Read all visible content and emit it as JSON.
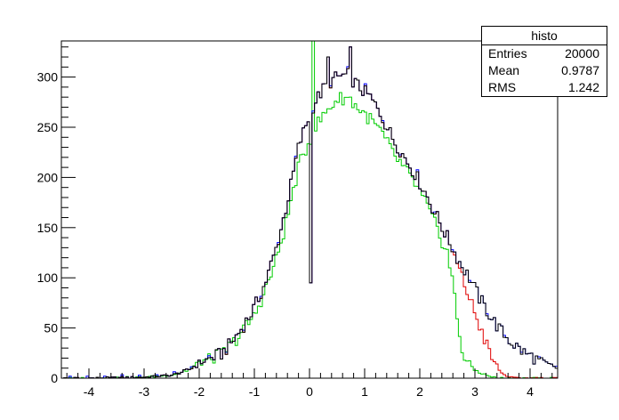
{
  "chart_data": {
    "type": "step",
    "title": "",
    "xlabel": "",
    "ylabel": "",
    "xlim": [
      -4.5,
      4.5
    ],
    "ylim": [
      0,
      336
    ],
    "xticks": [
      -4,
      -3,
      -2,
      -1,
      0,
      1,
      2,
      3,
      4
    ],
    "yticks": [
      0,
      50,
      100,
      150,
      200,
      250,
      300
    ],
    "bins": 200,
    "colors": {
      "black": "#000000",
      "red": "#e00000",
      "green": "#00cc00",
      "blue": "#0000ff"
    },
    "series": [
      {
        "color": "black",
        "anchors": [
          [
            -4.5,
            0
          ],
          [
            -4,
            0
          ],
          [
            -3,
            1
          ],
          [
            -2.5,
            3
          ],
          [
            -2.2,
            8
          ],
          [
            -2,
            15
          ],
          [
            -1.8,
            20
          ],
          [
            -1.6,
            24
          ],
          [
            -1.4,
            36
          ],
          [
            -1.2,
            52
          ],
          [
            -1.0,
            70
          ],
          [
            -0.8,
            95
          ],
          [
            -0.6,
            130
          ],
          [
            -0.4,
            175
          ],
          [
            -0.2,
            230
          ],
          [
            -0.05,
            255
          ],
          [
            0.1,
            275
          ],
          [
            0.3,
            292
          ],
          [
            0.5,
            300
          ],
          [
            0.7,
            302
          ],
          [
            0.9,
            290
          ],
          [
            1.1,
            280
          ],
          [
            1.3,
            262
          ],
          [
            1.5,
            240
          ],
          [
            1.7,
            222
          ],
          [
            1.9,
            205
          ],
          [
            2.1,
            185
          ],
          [
            2.3,
            162
          ],
          [
            2.5,
            140
          ],
          [
            2.7,
            118
          ],
          [
            2.9,
            100
          ],
          [
            3.1,
            78
          ],
          [
            3.3,
            60
          ],
          [
            3.5,
            45
          ],
          [
            3.7,
            34
          ],
          [
            3.9,
            25
          ],
          [
            4.1,
            20
          ],
          [
            4.3,
            14
          ],
          [
            4.5,
            10
          ]
        ],
        "spikes": [
          [
            0.0,
            95
          ],
          [
            0.33,
            320
          ],
          [
            0.72,
            330
          ]
        ]
      },
      {
        "color": "red",
        "anchors": [
          [
            -4.5,
            0
          ],
          [
            -4,
            0
          ],
          [
            -3,
            1
          ],
          [
            -2.5,
            3
          ],
          [
            -2.2,
            8
          ],
          [
            -2,
            15
          ],
          [
            -1.8,
            20
          ],
          [
            -1.6,
            24
          ],
          [
            -1.4,
            36
          ],
          [
            -1.2,
            52
          ],
          [
            -1.0,
            70
          ],
          [
            -0.8,
            95
          ],
          [
            -0.6,
            130
          ],
          [
            -0.4,
            175
          ],
          [
            -0.2,
            230
          ],
          [
            -0.05,
            255
          ],
          [
            0.1,
            275
          ],
          [
            0.3,
            292
          ],
          [
            0.5,
            300
          ],
          [
            0.7,
            302
          ],
          [
            0.9,
            290
          ],
          [
            1.1,
            280
          ],
          [
            1.3,
            262
          ],
          [
            1.5,
            240
          ],
          [
            1.7,
            222
          ],
          [
            1.9,
            205
          ],
          [
            2.1,
            185
          ],
          [
            2.3,
            162
          ],
          [
            2.5,
            140
          ],
          [
            2.7,
            110
          ],
          [
            2.9,
            80
          ],
          [
            3.1,
            50
          ],
          [
            3.3,
            20
          ],
          [
            3.5,
            4
          ],
          [
            3.7,
            0
          ],
          [
            4.5,
            0
          ]
        ]
      },
      {
        "color": "green",
        "anchors": [
          [
            -4.5,
            0
          ],
          [
            -4,
            0
          ],
          [
            -3,
            1
          ],
          [
            -2.5,
            3
          ],
          [
            -2.2,
            8
          ],
          [
            -2,
            15
          ],
          [
            -1.8,
            20
          ],
          [
            -1.6,
            24
          ],
          [
            -1.4,
            34
          ],
          [
            -1.2,
            48
          ],
          [
            -1.0,
            62
          ],
          [
            -0.8,
            88
          ],
          [
            -0.6,
            118
          ],
          [
            -0.4,
            160
          ],
          [
            -0.2,
            210
          ],
          [
            -0.05,
            230
          ],
          [
            0.1,
            250
          ],
          [
            0.3,
            265
          ],
          [
            0.5,
            278
          ],
          [
            0.7,
            280
          ],
          [
            0.9,
            268
          ],
          [
            1.1,
            258
          ],
          [
            1.3,
            245
          ],
          [
            1.5,
            225
          ],
          [
            1.7,
            210
          ],
          [
            1.9,
            195
          ],
          [
            2.1,
            175
          ],
          [
            2.3,
            150
          ],
          [
            2.5,
            125
          ],
          [
            2.6,
            95
          ],
          [
            2.7,
            50
          ],
          [
            2.8,
            20
          ],
          [
            3.0,
            8
          ],
          [
            3.2,
            3
          ],
          [
            3.4,
            0
          ],
          [
            4.5,
            0
          ]
        ],
        "spikes": [
          [
            0.05,
            336
          ]
        ]
      }
    ]
  },
  "stats": {
    "title": "histo",
    "rows": [
      {
        "label": "Entries",
        "value": "20000"
      },
      {
        "label": "Mean",
        "value": "0.9787"
      },
      {
        "label": "RMS",
        "value": "1.242"
      }
    ]
  }
}
